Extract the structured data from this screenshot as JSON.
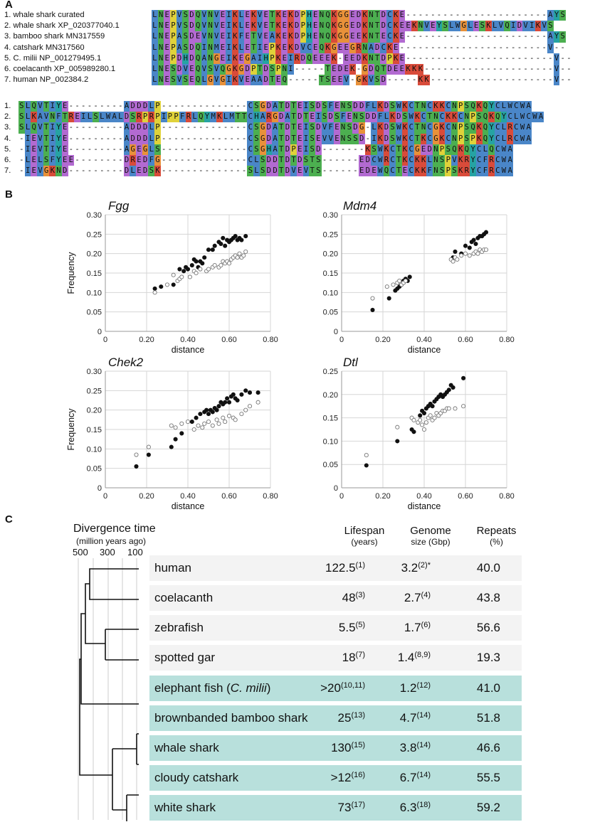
{
  "panels": {
    "a": "A",
    "b": "B",
    "c": "C"
  },
  "alignment": {
    "block1_names": [
      "1. whale shark curated",
      "2. whale shark XP_020377040.1",
      "3. bamboo shark MN317559",
      "4. catshark MN317560",
      "5. C. milii NP_001279495.1",
      "6. coelacanth XP_005989280.1",
      "7. human NP_002384.2"
    ],
    "block2_labels": [
      "1.",
      "2.",
      "3.",
      "4.",
      "5.",
      "6.",
      "7."
    ],
    "block1": [
      "LNEPVSDQVNVEIKLEKVETKEKDPHENQKGGEDKNTDCKE-----------------------AYS",
      "LNEPVSDQVNVEIKLEKVETKEKDPHENQKGGEDKNTDCKEEKNVEYSLWGLESKLVQIDVIKVS",
      "LNEPASDEVNVEIKFETVEAKEKDPHENQKGGEEKNTECKE-----------------------AYS",
      "LNEPASDQINMEIKLETIEPKEKDVCEQKGEEGRNADCKE------------------------V--",
      "LNEPDHDQANGEIKEGAIHPKEIRDQEEEK-EEDKNTDPKE------------------------V--",
      "LNESDVEQVSVQGKGDPTDSPNI-----TEDEK-GDQTDEEKKK---------------------V--",
      "LNESVSEQLGVGIKVEAADTEQ-----TSEEV-GKVSD-----KK--------------------V--"
    ],
    "block2": [
      "SLQVTIYE---------ADDDLP--------------CSGDATDTEISDSFENSDDFLKDSWKCTNCKKCNPSQKQYCLWCWA",
      "SLKAVNFTREILSLWALDSRPRPIPPFRLQYMKLMTTCHARGDATDTEISDSFENSDDFLKDSWKCTNCKKCNPSQKQYCLWCWA",
      "SLQVTIYE---------ADDDLP--------------CSGDATDTEISDVFENSDG-LKDSWKCTNCGKCNPSQKQYCLRCWA",
      "-IEVTIYE---------ADDDLP--------------CSGDATDTEISEVVENSSD-IKDSWKCTKCGKCNPSPKQYCLRCWA",
      "-IEVTIYE---------AGEGLS--------------CSGHATDPEISD-------KSWKCTKCGEDNPSQKQYCLQCWA",
      "-LELSFYEE--------DREDFG--------------CLSDDTDTDSTS------EDCWRCTKCKKLNSPVKRYCFRCWA",
      "-IEVGKND---------DLEDSK--------------SLSDDTDVEVTS------EDEWQCTECKKFNSPSKRYCFRCWA"
    ]
  },
  "plots": [
    {
      "title": "Fgg",
      "ylabel": "Frequency",
      "xlabel": "distance"
    },
    {
      "title": "Mdm4",
      "ylabel": "",
      "xlabel": "distance"
    },
    {
      "title": "Chek2",
      "ylabel": "Frequency",
      "xlabel": "distance"
    },
    {
      "title": "Dtl",
      "ylabel": "",
      "xlabel": "distance"
    }
  ],
  "chart_data": [
    {
      "type": "scatter",
      "title": "Fgg",
      "xlabel": "distance",
      "ylabel": "Frequency",
      "xlim": [
        0,
        0.8
      ],
      "ylim": [
        0,
        0.3
      ],
      "xticks": [
        "0",
        "0.20",
        "0.40",
        "0.60",
        "0.80"
      ],
      "yticks": [
        "0",
        "0.05",
        "0.10",
        "0.15",
        "0.20",
        "0.25",
        "0.30"
      ],
      "series": [
        {
          "name": "filled",
          "x": [
            0.24,
            0.27,
            0.33,
            0.36,
            0.38,
            0.39,
            0.4,
            0.42,
            0.43,
            0.44,
            0.45,
            0.46,
            0.47,
            0.48,
            0.5,
            0.52,
            0.53,
            0.55,
            0.56,
            0.57,
            0.58,
            0.59,
            0.6,
            0.61,
            0.62,
            0.63,
            0.64,
            0.65,
            0.66,
            0.68
          ],
          "y": [
            0.11,
            0.115,
            0.12,
            0.16,
            0.155,
            0.165,
            0.16,
            0.17,
            0.185,
            0.18,
            0.165,
            0.18,
            0.175,
            0.19,
            0.21,
            0.21,
            0.22,
            0.23,
            0.225,
            0.24,
            0.22,
            0.235,
            0.23,
            0.235,
            0.24,
            0.245,
            0.235,
            0.24,
            0.235,
            0.245
          ]
        },
        {
          "name": "open",
          "x": [
            0.24,
            0.3,
            0.33,
            0.35,
            0.36,
            0.37,
            0.41,
            0.43,
            0.44,
            0.46,
            0.49,
            0.5,
            0.52,
            0.53,
            0.55,
            0.56,
            0.57,
            0.58,
            0.59,
            0.6,
            0.61,
            0.62,
            0.63,
            0.64,
            0.65,
            0.66,
            0.67,
            0.68
          ],
          "y": [
            0.1,
            0.12,
            0.145,
            0.13,
            0.135,
            0.14,
            0.14,
            0.155,
            0.15,
            0.16,
            0.155,
            0.16,
            0.165,
            0.17,
            0.165,
            0.17,
            0.18,
            0.175,
            0.18,
            0.175,
            0.185,
            0.19,
            0.195,
            0.19,
            0.2,
            0.19,
            0.195,
            0.205
          ]
        }
      ]
    },
    {
      "type": "scatter",
      "title": "Mdm4",
      "xlabel": "distance",
      "ylabel": "",
      "xlim": [
        0,
        0.8
      ],
      "ylim": [
        0,
        0.3
      ],
      "xticks": [
        "0",
        "0.20",
        "0.40",
        "0.60",
        "0.80"
      ],
      "yticks": [
        "0",
        "0.05",
        "0.10",
        "0.15",
        "0.20",
        "0.25",
        "0.30"
      ],
      "series": [
        {
          "name": "filled",
          "x": [
            0.15,
            0.23,
            0.26,
            0.27,
            0.28,
            0.29,
            0.3,
            0.31,
            0.32,
            0.33,
            0.54,
            0.55,
            0.58,
            0.6,
            0.62,
            0.63,
            0.64,
            0.65,
            0.66,
            0.67,
            0.68,
            0.69,
            0.7
          ],
          "y": [
            0.055,
            0.085,
            0.105,
            0.11,
            0.115,
            0.12,
            0.13,
            0.135,
            0.13,
            0.14,
            0.19,
            0.205,
            0.2,
            0.22,
            0.215,
            0.23,
            0.235,
            0.225,
            0.24,
            0.245,
            0.245,
            0.25,
            0.255
          ]
        },
        {
          "name": "open",
          "x": [
            0.15,
            0.22,
            0.25,
            0.27,
            0.28,
            0.29,
            0.3,
            0.31,
            0.53,
            0.54,
            0.55,
            0.56,
            0.58,
            0.6,
            0.62,
            0.64,
            0.65,
            0.66,
            0.67,
            0.68,
            0.69,
            0.7
          ],
          "y": [
            0.085,
            0.115,
            0.12,
            0.125,
            0.13,
            0.12,
            0.125,
            0.13,
            0.185,
            0.18,
            0.19,
            0.185,
            0.195,
            0.2,
            0.195,
            0.2,
            0.205,
            0.2,
            0.21,
            0.205,
            0.21,
            0.21
          ]
        }
      ]
    },
    {
      "type": "scatter",
      "title": "Chek2",
      "xlabel": "distance",
      "ylabel": "Frequency",
      "xlim": [
        0,
        0.8
      ],
      "ylim": [
        0,
        0.3
      ],
      "xticks": [
        "0",
        "0.20",
        "0.40",
        "0.60",
        "0.80"
      ],
      "yticks": [
        "0",
        "0.05",
        "0.10",
        "0.15",
        "0.20",
        "0.25",
        "0.30"
      ],
      "series": [
        {
          "name": "filled",
          "x": [
            0.15,
            0.21,
            0.32,
            0.34,
            0.37,
            0.42,
            0.44,
            0.46,
            0.48,
            0.49,
            0.5,
            0.51,
            0.52,
            0.53,
            0.54,
            0.55,
            0.56,
            0.57,
            0.58,
            0.59,
            0.6,
            0.61,
            0.62,
            0.63,
            0.64,
            0.66,
            0.68,
            0.7,
            0.74
          ],
          "y": [
            0.055,
            0.085,
            0.105,
            0.125,
            0.14,
            0.17,
            0.18,
            0.19,
            0.195,
            0.2,
            0.19,
            0.2,
            0.195,
            0.205,
            0.2,
            0.21,
            0.22,
            0.215,
            0.22,
            0.23,
            0.22,
            0.235,
            0.24,
            0.23,
            0.225,
            0.24,
            0.25,
            0.245,
            0.245
          ]
        },
        {
          "name": "open",
          "x": [
            0.15,
            0.21,
            0.32,
            0.34,
            0.37,
            0.4,
            0.43,
            0.45,
            0.47,
            0.48,
            0.5,
            0.52,
            0.54,
            0.55,
            0.57,
            0.58,
            0.6,
            0.62,
            0.63,
            0.66,
            0.68,
            0.7,
            0.74
          ],
          "y": [
            0.085,
            0.105,
            0.16,
            0.155,
            0.165,
            0.17,
            0.15,
            0.16,
            0.155,
            0.165,
            0.17,
            0.16,
            0.175,
            0.165,
            0.18,
            0.17,
            0.185,
            0.18,
            0.175,
            0.19,
            0.2,
            0.21,
            0.22
          ]
        }
      ]
    },
    {
      "type": "scatter",
      "title": "Dtl",
      "xlabel": "distance",
      "ylabel": "",
      "xlim": [
        0,
        0.8
      ],
      "ylim": [
        0,
        0.25
      ],
      "xticks": [
        "0",
        "0.20",
        "0.40",
        "0.60",
        "0.80"
      ],
      "yticks": [
        "0",
        "0.05",
        "0.10",
        "0.15",
        "0.20",
        "0.25"
      ],
      "series": [
        {
          "name": "filled",
          "x": [
            0.12,
            0.27,
            0.34,
            0.35,
            0.38,
            0.39,
            0.4,
            0.41,
            0.42,
            0.43,
            0.44,
            0.45,
            0.46,
            0.47,
            0.48,
            0.49,
            0.5,
            0.51,
            0.52,
            0.53,
            0.54,
            0.59
          ],
          "y": [
            0.048,
            0.1,
            0.125,
            0.12,
            0.155,
            0.165,
            0.16,
            0.17,
            0.175,
            0.18,
            0.175,
            0.185,
            0.19,
            0.195,
            0.2,
            0.195,
            0.2,
            0.205,
            0.21,
            0.22,
            0.215,
            0.235
          ]
        },
        {
          "name": "open",
          "x": [
            0.12,
            0.27,
            0.34,
            0.35,
            0.37,
            0.38,
            0.39,
            0.4,
            0.41,
            0.42,
            0.43,
            0.44,
            0.45,
            0.46,
            0.47,
            0.48,
            0.49,
            0.5,
            0.51,
            0.52,
            0.55,
            0.59
          ],
          "y": [
            0.07,
            0.13,
            0.15,
            0.145,
            0.14,
            0.145,
            0.135,
            0.125,
            0.14,
            0.15,
            0.155,
            0.145,
            0.15,
            0.16,
            0.155,
            0.16,
            0.165,
            0.165,
            0.17,
            0.17,
            0.17,
            0.175
          ]
        }
      ]
    }
  ],
  "divergence": {
    "title": "Divergence time",
    "subtitle": "(million years ago)",
    "ticks": [
      "500",
      "300",
      "100"
    ]
  },
  "columns": {
    "lifespan": "Lifespan",
    "lifespan_unit": "(years)",
    "genome": "Genome",
    "genome_unit": "size (Gbp)",
    "repeats": "Repeats",
    "repeats_unit": "(%)"
  },
  "species": [
    {
      "name": "human",
      "lifespan": "122.5",
      "lifespan_ref": "(1)",
      "genome": "3.2",
      "genome_ref": "(2)*",
      "repeats": "40.0",
      "group": "grey"
    },
    {
      "name": "coelacanth",
      "lifespan": "48",
      "lifespan_ref": "(3)",
      "genome": "2.7",
      "genome_ref": "(4)",
      "repeats": "43.8",
      "group": "grey"
    },
    {
      "name": "zebrafish",
      "lifespan": "5.5",
      "lifespan_ref": "(5)",
      "genome": "1.7",
      "genome_ref": "(6)",
      "repeats": "56.6",
      "group": "grey"
    },
    {
      "name": "spotted gar",
      "lifespan": "18",
      "lifespan_ref": "(7)",
      "genome": "1.4",
      "genome_ref": "(8,9)",
      "repeats": "19.3",
      "group": "grey"
    },
    {
      "name": "elephant fish (C. milii)",
      "lifespan": ">20",
      "lifespan_ref": "(10,11)",
      "genome": "1.2",
      "genome_ref": "(12)",
      "repeats": "41.0",
      "group": "teal"
    },
    {
      "name": "brownbanded bamboo shark",
      "lifespan": "25",
      "lifespan_ref": "(13)",
      "genome": "4.7",
      "genome_ref": "(14)",
      "repeats": "51.8",
      "group": "teal"
    },
    {
      "name": "whale shark",
      "lifespan": "130",
      "lifespan_ref": "(15)",
      "genome": "3.8",
      "genome_ref": "(14)",
      "repeats": "46.6",
      "group": "teal"
    },
    {
      "name": "cloudy catshark",
      "lifespan": ">12",
      "lifespan_ref": "(16)",
      "genome": "6.7",
      "genome_ref": "(14)",
      "repeats": "55.5",
      "group": "teal"
    },
    {
      "name": "white shark",
      "lifespan": "73",
      "lifespan_ref": "(17)",
      "genome": "6.3",
      "genome_ref": "(18)",
      "repeats": "59.2",
      "group": "teal"
    }
  ]
}
